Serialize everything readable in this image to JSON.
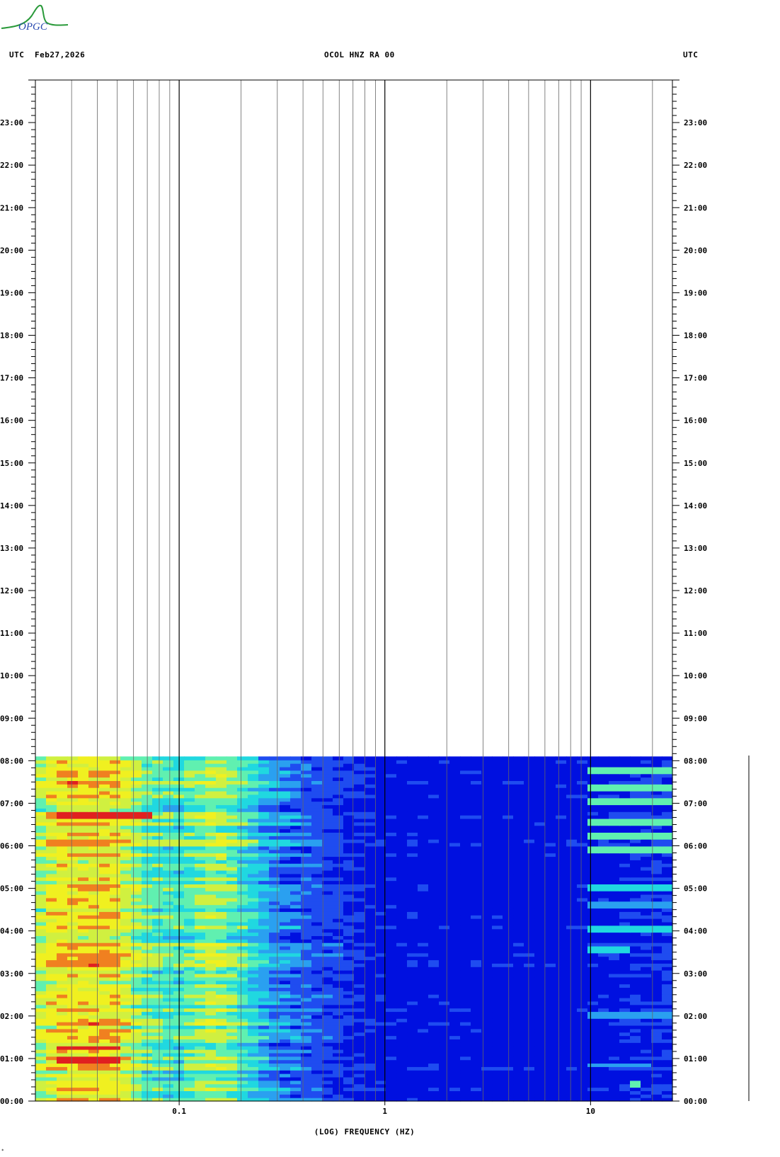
{
  "header": {
    "utc_left": "UTC",
    "date": "Feb27,2026",
    "title": "OCOL HNZ RA 00",
    "utc_right": "UTC"
  },
  "logo": {
    "name": "opgc-logo",
    "text": "OPGC"
  },
  "footer_mark": "*",
  "chart_data": {
    "type": "heatmap",
    "title": "OCOL HNZ RA 00",
    "xlabel": "(LOG) FREQUENCY (HZ)",
    "ylabel": "",
    "x_scale": "log",
    "xlim": [
      0.02,
      25
    ],
    "ylim_hours": [
      0,
      24
    ],
    "x_tick_labels": [
      {
        "value": 0.1,
        "label": "0.1"
      },
      {
        "value": 1,
        "label": "1"
      },
      {
        "value": 10,
        "label": "10"
      }
    ],
    "x_gridlines": [
      0.03,
      0.04,
      0.05,
      0.06,
      0.07,
      0.08,
      0.09,
      0.1,
      0.2,
      0.3,
      0.4,
      0.5,
      0.6,
      0.7,
      0.8,
      0.9,
      1,
      2,
      3,
      4,
      5,
      6,
      7,
      8,
      9,
      10,
      20
    ],
    "y_tick_labels": [
      "00:00",
      "01:00",
      "02:00",
      "03:00",
      "04:00",
      "05:00",
      "06:00",
      "07:00",
      "08:00",
      "09:00",
      "10:00",
      "11:00",
      "12:00",
      "13:00",
      "14:00",
      "15:00",
      "16:00",
      "17:00",
      "18:00",
      "19:00",
      "20:00",
      "21:00",
      "22:00",
      "23:00"
    ],
    "data_end_hour": 8.1,
    "colormap": [
      "#0010e0",
      "#1f4cf0",
      "#2aa0f0",
      "#20d8e0",
      "#60f0b0",
      "#d0f040",
      "#f0f020",
      "#f08020",
      "#e02020"
    ],
    "spectral_profile": [
      {
        "f": 0.02,
        "level": 0.55
      },
      {
        "f": 0.025,
        "level": 0.72
      },
      {
        "f": 0.05,
        "level": 0.72
      },
      {
        "f": 0.07,
        "level": 0.5
      },
      {
        "f": 0.1,
        "level": 0.45
      },
      {
        "f": 0.15,
        "level": 0.6
      },
      {
        "f": 0.2,
        "level": 0.45
      },
      {
        "f": 0.3,
        "level": 0.25
      },
      {
        "f": 0.5,
        "level": 0.15
      },
      {
        "f": 1,
        "level": 0.05
      },
      {
        "f": 5,
        "level": 0.02
      },
      {
        "f": 10,
        "level": 0.05
      },
      {
        "f": 25,
        "level": 0.12
      }
    ],
    "events": [
      {
        "hour": 0.4,
        "f_low": 15,
        "f_high": 18,
        "level": 0.5
      },
      {
        "hour": 0.85,
        "f_low": 10,
        "f_high": 20,
        "level": 0.3
      },
      {
        "hour": 1.0,
        "f_low": 0.025,
        "f_high": 0.05,
        "level": 1.0
      },
      {
        "hour": 1.25,
        "f_low": 0.025,
        "f_high": 0.05,
        "level": 0.95
      },
      {
        "hour": 2.05,
        "f_low": 10,
        "f_high": 25,
        "level": 0.3
      },
      {
        "hour": 3.55,
        "f_low": 10,
        "f_high": 15,
        "level": 0.35
      },
      {
        "hour": 4.05,
        "f_low": 10,
        "f_high": 25,
        "level": 0.4
      },
      {
        "hour": 4.6,
        "f_low": 10,
        "f_high": 25,
        "level": 0.3
      },
      {
        "hour": 5.0,
        "f_low": 10,
        "f_high": 25,
        "level": 0.4
      },
      {
        "hour": 5.9,
        "f_low": 10,
        "f_high": 25,
        "level": 0.5
      },
      {
        "hour": 6.25,
        "f_low": 10,
        "f_high": 25,
        "level": 0.45
      },
      {
        "hour": 6.55,
        "f_low": 10,
        "f_high": 25,
        "level": 0.55
      },
      {
        "hour": 6.75,
        "f_low": 0.025,
        "f_high": 0.07,
        "level": 1.0
      },
      {
        "hour": 7.05,
        "f_low": 10,
        "f_high": 25,
        "level": 0.55
      },
      {
        "hour": 7.4,
        "f_low": 10,
        "f_high": 25,
        "level": 0.5
      },
      {
        "hour": 7.75,
        "f_low": 10,
        "f_high": 25,
        "level": 0.45
      }
    ],
    "grid": true,
    "legend": "none"
  }
}
